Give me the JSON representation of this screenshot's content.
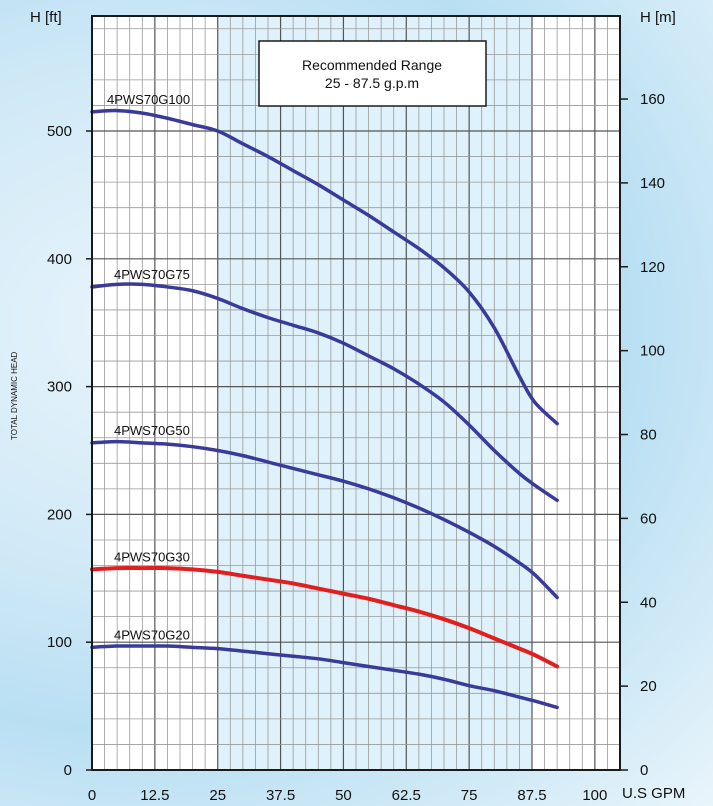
{
  "chart_data": {
    "type": "line",
    "xlabel": "U.S GPM",
    "ylabel": "H [ft]",
    "y2label": "H [m]",
    "side_title": "TOTAL DYNAMIC HEAD",
    "xlim": [
      0,
      105
    ],
    "ylim": [
      0,
      590
    ],
    "y2lim": [
      0,
      179.8
    ],
    "x_ticks": [
      "0",
      "12.5",
      "25",
      "37.5",
      "50",
      "62.5",
      "75",
      "87.5",
      "100"
    ],
    "x_tick_values": [
      0,
      12.5,
      25,
      37.5,
      50,
      62.5,
      75,
      87.5,
      100
    ],
    "y_ticks": [
      "0",
      "100",
      "200",
      "300",
      "400",
      "500"
    ],
    "y_tick_values": [
      0,
      100,
      200,
      300,
      400,
      500
    ],
    "y2_ticks": [
      "0",
      "20",
      "40",
      "60",
      "80",
      "100",
      "120",
      "140",
      "160"
    ],
    "y2_tick_values": [
      0,
      20,
      40,
      60,
      80,
      100,
      120,
      140,
      160
    ],
    "grid": true,
    "recommended_range": [
      25,
      87.5
    ],
    "annotation": {
      "line1": "Recommended Range",
      "line2": "25 - 87.5 g.p.m"
    },
    "series": [
      {
        "name": "4PWS70G100",
        "color": "#3a3a9a",
        "x": [
          0,
          5,
          10,
          15,
          20,
          25,
          30,
          35,
          40,
          45,
          50,
          55,
          60,
          65,
          70,
          75,
          80,
          85,
          88,
          92.5
        ],
        "y": [
          515,
          516,
          514,
          510,
          505,
          500,
          490,
          480,
          469,
          458,
          446,
          434,
          421,
          408,
          393,
          374,
          346,
          308,
          288,
          271
        ]
      },
      {
        "name": "4PWS70G75",
        "color": "#3a3a9a",
        "x": [
          0,
          5,
          10,
          15,
          20,
          25,
          30,
          35,
          40,
          45,
          50,
          55,
          60,
          65,
          70,
          75,
          80,
          85,
          88,
          92.5
        ],
        "y": [
          378,
          380,
          380,
          378,
          375,
          369,
          361,
          354,
          348,
          342,
          334,
          324,
          314,
          302,
          288,
          270,
          250,
          232,
          223,
          211
        ]
      },
      {
        "name": "4PWS70G50",
        "color": "#3a3a9a",
        "x": [
          0,
          5,
          10,
          15,
          20,
          25,
          30,
          35,
          40,
          45,
          50,
          55,
          60,
          65,
          70,
          75,
          80,
          85,
          88,
          92.5
        ],
        "y": [
          256,
          257,
          256,
          255,
          253,
          250,
          246,
          241,
          236,
          231,
          226,
          220,
          213,
          205,
          196,
          186,
          175,
          162,
          153,
          135
        ]
      },
      {
        "name": "4PWS70G30",
        "color": "#e21f1f",
        "x": [
          0,
          5,
          10,
          15,
          20,
          25,
          30,
          35,
          40,
          45,
          50,
          55,
          60,
          65,
          70,
          75,
          80,
          85,
          88,
          92.5
        ],
        "y": [
          157,
          158,
          158,
          158,
          157,
          155,
          152,
          149,
          146,
          142,
          138,
          134,
          129,
          124,
          118,
          111,
          103,
          95,
          90,
          81
        ]
      },
      {
        "name": "4PWS70G20",
        "color": "#3a3a9a",
        "x": [
          0,
          5,
          10,
          15,
          20,
          25,
          30,
          35,
          40,
          45,
          50,
          55,
          60,
          65,
          70,
          75,
          80,
          85,
          88,
          92.5
        ],
        "y": [
          96,
          97,
          97,
          97,
          96,
          95,
          93,
          91,
          89,
          87,
          84,
          81,
          78,
          75,
          71,
          66,
          62,
          57,
          54,
          49
        ]
      }
    ]
  }
}
